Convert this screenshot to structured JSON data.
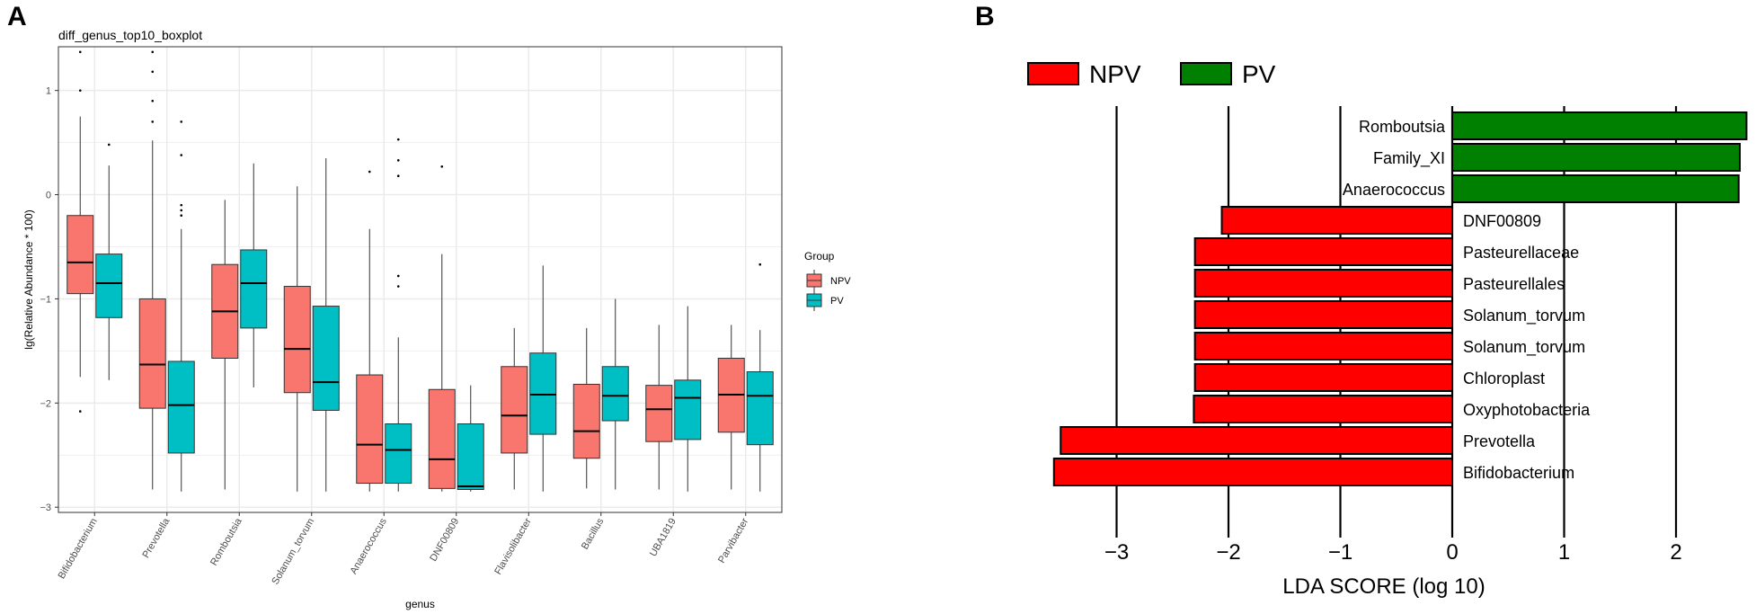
{
  "panel_labels": {
    "a": "A",
    "b": "B"
  },
  "chart_data": [
    {
      "type": "boxplot",
      "title": "diff_genus_top10_boxplot",
      "xlabel": "genus",
      "ylabel": "lg(Relative Abundance * 100)",
      "ylim": [
        -3.05,
        1.42
      ],
      "yticks": [
        1,
        0,
        -1,
        -2,
        -3
      ],
      "ytick_labels": [
        "1",
        "0",
        "−1",
        "−2",
        "−3"
      ],
      "categories": [
        "Bifidobacterium",
        "Prevotella",
        "Romboutsia",
        "Solanum_torvum",
        "Anaerococcus",
        "DNF00809",
        "Flavisolibacter",
        "Bacillus",
        "UBA1819",
        "Parvibacter"
      ],
      "legend": {
        "title": "Group",
        "position": "right",
        "entries": [
          "NPV",
          "PV"
        ]
      },
      "colors": {
        "NPV": "#f8766d",
        "PV": "#00bfc4",
        "grid": "#ebebeb",
        "border": "#333333"
      },
      "series": [
        {
          "name": "NPV",
          "boxes": [
            {
              "lw": -1.75,
              "q1": -0.95,
              "med": -0.65,
              "q3": -0.2,
              "uw": 0.75,
              "out": [
                1.37,
                1.0,
                -2.08
              ]
            },
            {
              "lw": -2.83,
              "q1": -2.05,
              "med": -1.63,
              "q3": -1.0,
              "uw": 0.52,
              "out": [
                1.37,
                1.18,
                0.9,
                0.7
              ]
            },
            {
              "lw": -2.83,
              "q1": -1.57,
              "med": -1.12,
              "q3": -0.67,
              "uw": -0.05,
              "out": []
            },
            {
              "lw": -2.85,
              "q1": -1.9,
              "med": -1.48,
              "q3": -0.88,
              "uw": 0.08,
              "out": []
            },
            {
              "lw": -2.85,
              "q1": -2.77,
              "med": -2.4,
              "q3": -1.73,
              "uw": -0.33,
              "out": [
                0.22
              ]
            },
            {
              "lw": -2.85,
              "q1": -2.82,
              "med": -2.54,
              "q3": -1.87,
              "uw": -0.57,
              "out": [
                0.27
              ]
            },
            {
              "lw": -2.83,
              "q1": -2.48,
              "med": -2.12,
              "q3": -1.65,
              "uw": -1.28,
              "out": []
            },
            {
              "lw": -2.82,
              "q1": -2.53,
              "med": -2.27,
              "q3": -1.82,
              "uw": -1.28,
              "out": []
            },
            {
              "lw": -2.83,
              "q1": -2.37,
              "med": -2.06,
              "q3": -1.83,
              "uw": -1.25,
              "out": []
            },
            {
              "lw": -2.83,
              "q1": -2.28,
              "med": -1.92,
              "q3": -1.57,
              "uw": -1.25,
              "out": []
            }
          ]
        },
        {
          "name": "PV",
          "boxes": [
            {
              "lw": -1.78,
              "q1": -1.18,
              "med": -0.85,
              "q3": -0.57,
              "uw": 0.28,
              "out": [
                0.48
              ]
            },
            {
              "lw": -2.85,
              "q1": -2.48,
              "med": -2.02,
              "q3": -1.6,
              "uw": -0.33,
              "out": [
                0.7,
                0.38,
                -0.1,
                -0.15,
                -0.2
              ]
            },
            {
              "lw": -1.85,
              "q1": -1.28,
              "med": -0.85,
              "q3": -0.53,
              "uw": 0.3,
              "out": []
            },
            {
              "lw": -2.85,
              "q1": -2.07,
              "med": -1.8,
              "q3": -1.07,
              "uw": 0.35,
              "out": []
            },
            {
              "lw": -2.85,
              "q1": -2.77,
              "med": -2.45,
              "q3": -2.2,
              "uw": -1.37,
              "out": [
                0.53,
                0.33,
                0.18,
                -0.78,
                -0.88
              ]
            },
            {
              "lw": -2.85,
              "q1": -2.83,
              "med": -2.8,
              "q3": -2.2,
              "uw": -1.83,
              "out": []
            },
            {
              "lw": -2.85,
              "q1": -2.3,
              "med": -1.92,
              "q3": -1.52,
              "uw": -0.68,
              "out": []
            },
            {
              "lw": -2.83,
              "q1": -2.17,
              "med": -1.93,
              "q3": -1.65,
              "uw": -1.0,
              "out": []
            },
            {
              "lw": -2.85,
              "q1": -2.35,
              "med": -1.95,
              "q3": -1.78,
              "uw": -1.07,
              "out": []
            },
            {
              "lw": -2.85,
              "q1": -2.4,
              "med": -1.93,
              "q3": -1.7,
              "uw": -1.3,
              "out": [
                -0.67
              ]
            }
          ]
        }
      ]
    },
    {
      "type": "bar",
      "orientation": "horizontal",
      "title": "",
      "xlabel": "LDA SCORE (log 10)",
      "xlim": [
        -3.6,
        2.65
      ],
      "xticks": [
        -3,
        -2,
        -1,
        0,
        1,
        2
      ],
      "xtick_labels": [
        "−3",
        "−2",
        "−1",
        "0",
        "1",
        "2"
      ],
      "legend": {
        "position": "top",
        "entries": [
          "NPV",
          "PV"
        ]
      },
      "colors": {
        "NPV": "#ff0000",
        "PV": "#008000"
      },
      "bars": [
        {
          "label": "Romboutsia",
          "value": 2.63,
          "group": "PV"
        },
        {
          "label": "Family_XI",
          "value": 2.57,
          "group": "PV"
        },
        {
          "label": "Anaerococcus",
          "value": 2.56,
          "group": "PV"
        },
        {
          "label": "DNF00809",
          "value": -2.06,
          "group": "NPV"
        },
        {
          "label": "Pasteurellaceae",
          "value": -2.3,
          "group": "NPV"
        },
        {
          "label": "Pasteurellales",
          "value": -2.3,
          "group": "NPV"
        },
        {
          "label": "Solanum_torvum",
          "value": -2.3,
          "group": "NPV"
        },
        {
          "label": "Solanum_torvum",
          "value": -2.3,
          "group": "NPV"
        },
        {
          "label": "Chloroplast",
          "value": -2.3,
          "group": "NPV"
        },
        {
          "label": "Oxyphotobacteria",
          "value": -2.31,
          "group": "NPV"
        },
        {
          "label": "Prevotella",
          "value": -3.5,
          "group": "NPV"
        },
        {
          "label": "Bifidobacterium",
          "value": -3.56,
          "group": "NPV"
        }
      ]
    }
  ]
}
